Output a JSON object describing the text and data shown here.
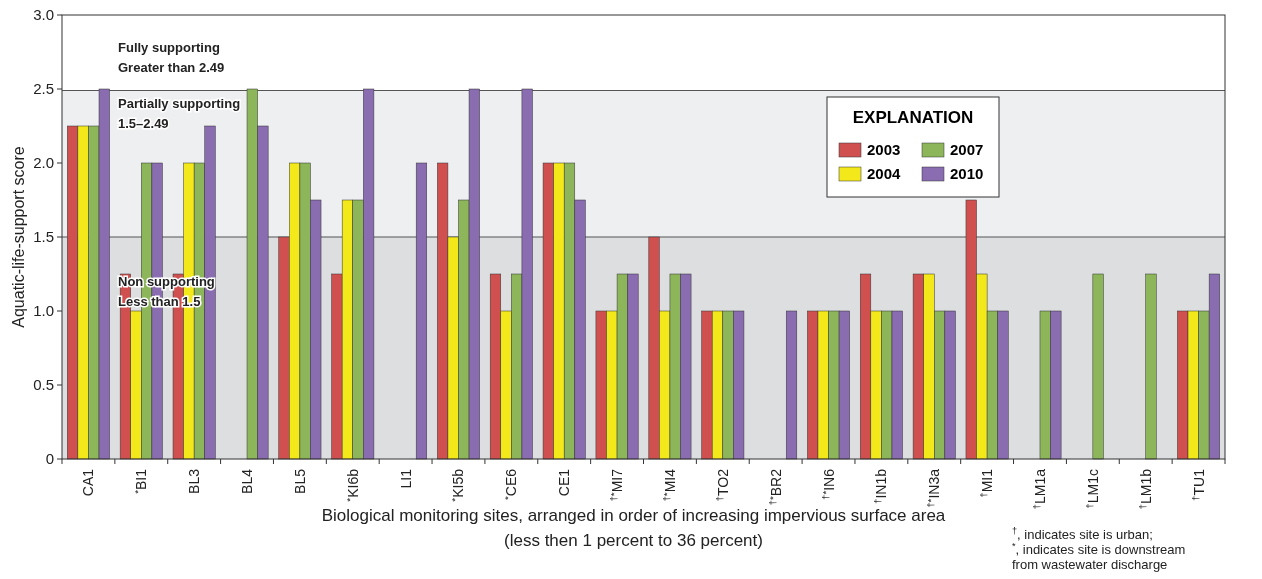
{
  "chart_data": {
    "type": "bar",
    "xlabel": "Biological monitoring sites, arranged in order of increasing impervious surface area\n(less then 1 percent to 36 percent)",
    "ylabel": "Aquatic-life-support score",
    "legend_title": "EXPLANATION",
    "legend": "top right",
    "categories": [
      "CA1",
      "$^{*}$BI1",
      "BL3",
      "BL4",
      "BL5",
      "$^{*}$KI6b",
      "LI1",
      "$^{*}$KI5b",
      "$^{*}$CE6",
      "CE1",
      "$^{†*}$MI7",
      "$^{†*}$MI4",
      "$^{†}$TO2",
      "$^{†*}$BR2",
      "$^{†*}$IN6",
      "$^{†}$IN1b",
      "$^{†*}$IN3a",
      "$^{†}$MI1",
      "$^{†}$LM1a",
      "$^{†}$LM1c",
      "$^{†}$LM1b",
      "$^{†}$TU1"
    ],
    "series": [
      {
        "name": "2003",
        "color": "#d05050",
        "values": [
          2.25,
          1.25,
          1.25,
          null,
          1.5,
          1.25,
          null,
          2.0,
          1.25,
          2.0,
          1.0,
          1.5,
          1.0,
          null,
          1.0,
          1.25,
          1.25,
          1.75,
          null,
          null,
          null,
          1.0
        ]
      },
      {
        "name": "2004",
        "color": "#f2e81a",
        "values": [
          2.25,
          1.0,
          2.0,
          null,
          2.0,
          1.75,
          null,
          1.5,
          1.0,
          2.0,
          1.0,
          1.0,
          1.0,
          null,
          1.0,
          1.0,
          1.25,
          1.25,
          null,
          null,
          null,
          1.0
        ]
      },
      {
        "name": "2007",
        "color": "#8db65a",
        "values": [
          2.25,
          2.0,
          2.0,
          2.5,
          2.0,
          1.75,
          null,
          1.75,
          1.25,
          2.0,
          1.25,
          1.25,
          1.0,
          null,
          1.0,
          1.0,
          1.0,
          1.0,
          1.0,
          1.25,
          1.25,
          1.0
        ]
      },
      {
        "name": "2010",
        "color": "#8a6cb0",
        "values": [
          2.5,
          2.0,
          2.25,
          2.25,
          1.75,
          2.5,
          2.0,
          2.5,
          2.5,
          1.75,
          1.25,
          1.25,
          1.0,
          1.0,
          1.0,
          1.0,
          1.0,
          1.0,
          1.0,
          null,
          null,
          1.25
        ]
      }
    ],
    "ylim": [
      0,
      3
    ],
    "yticks": [
      0,
      {
        "value": 0.5,
        "label": "0.5"
      },
      {
        "value": 1,
        "label": "1.0"
      },
      {
        "value": 1.5,
        "label": "1.5"
      },
      {
        "value": 2,
        "label": "2.0"
      },
      {
        "value": 2.5,
        "label": "2.5"
      },
      {
        "value": 3,
        "label": "3.0"
      }
    ],
    "bands": [
      {
        "axis": "y",
        "from": 0,
        "to": 1.5,
        "label": "Non supporting\nLess than 1.5",
        "color": "#dcdee0"
      },
      {
        "axis": "y",
        "from": 1.5,
        "to": 2.49,
        "label": "Partially supporting\n1.5–2.49",
        "color": "#edeff1"
      }
    ],
    "ref_lines": [
      {
        "axis": "y",
        "value": 1.5,
        "color": "#555555"
      },
      {
        "axis": "y",
        "value": 2.49,
        "color": "#555555"
      }
    ],
    "annotations": [
      {
        "text": "Fully supporting\nGreater than 2.49",
        "y": 2.49
      },
      "$^{†}$, indicates site is urban;\n$^{*}$, indicates site is downstream\nfrom wastewater discharge"
    ]
  }
}
